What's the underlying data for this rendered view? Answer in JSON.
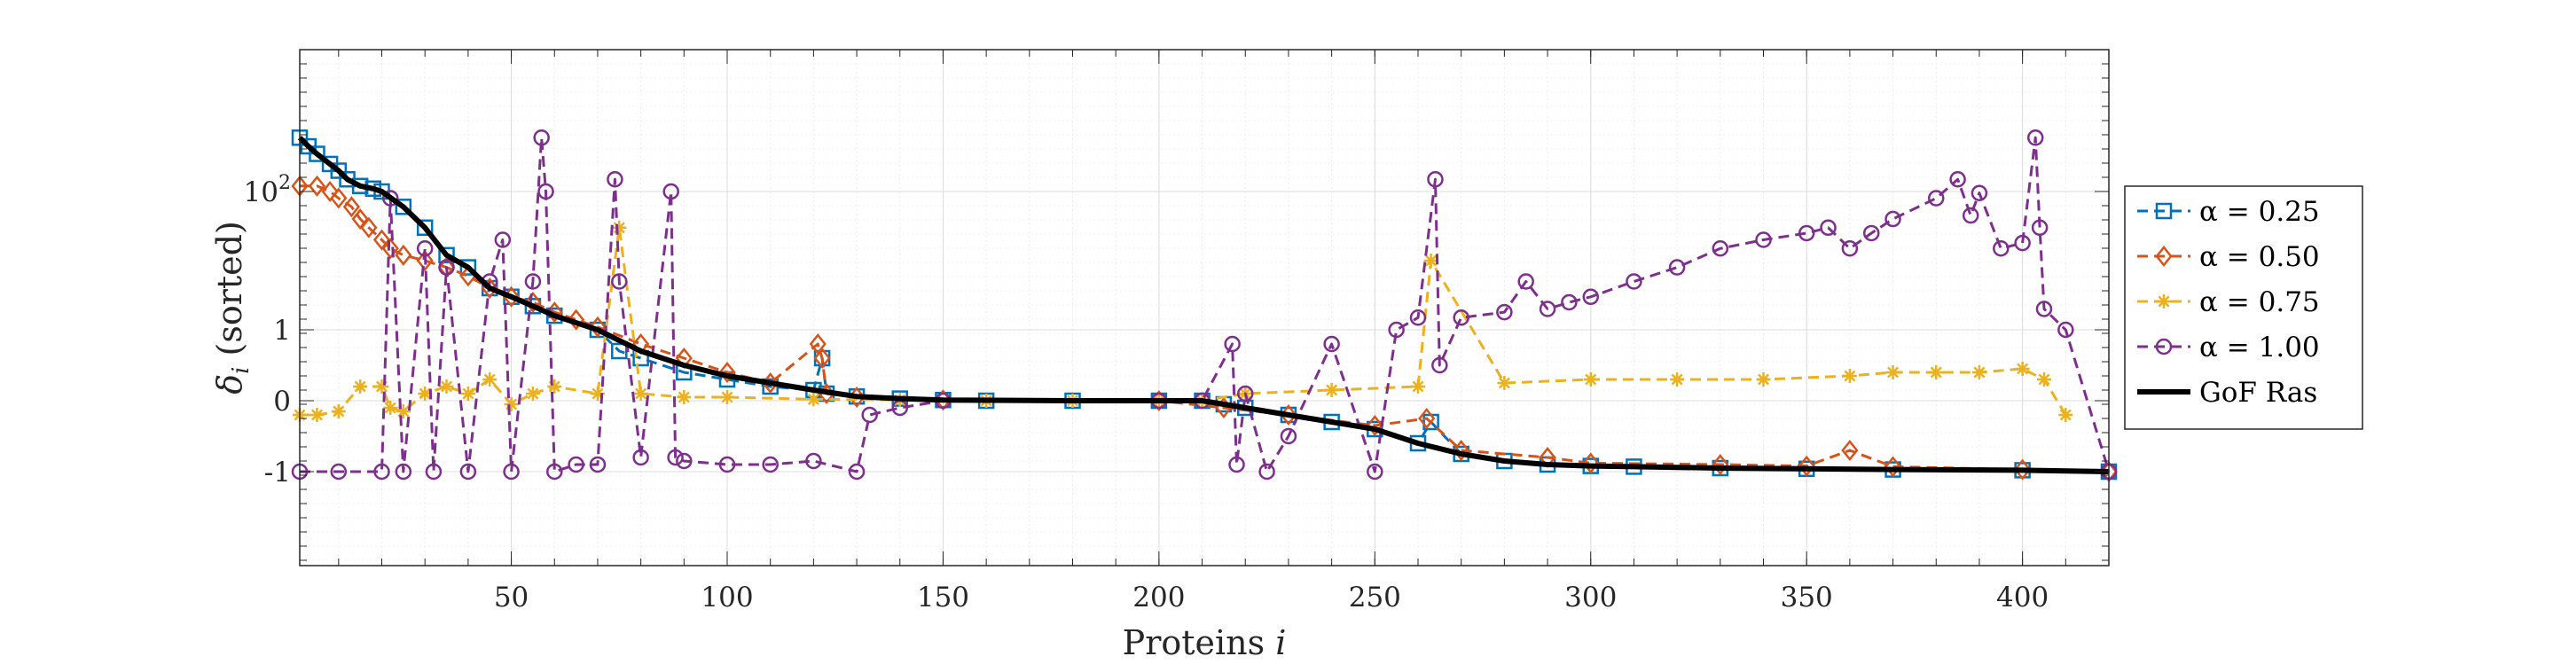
{
  "chart_data": {
    "type": "line",
    "xlabel": "Proteins i",
    "ylabel": "δ_i (sorted)",
    "xlim": [
      1,
      420
    ],
    "y_scale": "symlog",
    "grid": true,
    "legend_position": "right-outside",
    "x_ticks": [
      50,
      100,
      150,
      200,
      250,
      300,
      350,
      400
    ],
    "x_tick_labels": [
      "50",
      "100",
      "150",
      "200",
      "250",
      "300",
      "350",
      "400"
    ],
    "y_ticks": [
      -1,
      0,
      1,
      100
    ],
    "y_tick_labels": [
      "-1",
      "0",
      "1",
      "10²"
    ],
    "series": [
      {
        "name": "α = 0.25",
        "color": "#0072BD",
        "marker": "square",
        "linestyle": "dashed",
        "x": [
          1,
          3,
          5,
          8,
          10,
          12,
          15,
          18,
          20,
          25,
          30,
          35,
          40,
          45,
          50,
          55,
          60,
          70,
          75,
          80,
          90,
          100,
          110,
          120,
          122,
          123,
          130,
          140,
          150,
          160,
          180,
          200,
          210,
          215,
          220,
          230,
          240,
          250,
          260,
          263,
          270,
          280,
          290,
          300,
          310,
          330,
          350,
          370,
          400,
          420
        ],
        "values": [
          600,
          450,
          350,
          250,
          200,
          150,
          120,
          110,
          100,
          60,
          30,
          12,
          8,
          4,
          3,
          2.2,
          1.6,
          1.0,
          0.7,
          0.6,
          0.4,
          0.3,
          0.2,
          0.15,
          0.6,
          0.1,
          0.06,
          0.03,
          0.01,
          0,
          0,
          0,
          0,
          -0.05,
          -0.1,
          -0.2,
          -0.3,
          -0.4,
          -0.6,
          -0.3,
          -0.75,
          -0.85,
          -0.9,
          -0.92,
          -0.93,
          -0.95,
          -0.96,
          -0.97,
          -0.98,
          -1.0
        ]
      },
      {
        "name": "α = 0.50",
        "color": "#D95319",
        "marker": "diamond",
        "linestyle": "dashed",
        "x": [
          1,
          5,
          8,
          10,
          13,
          15,
          17,
          20,
          22,
          25,
          30,
          35,
          40,
          45,
          50,
          55,
          60,
          65,
          70,
          80,
          90,
          100,
          110,
          121,
          122,
          123,
          130,
          150,
          200,
          215,
          230,
          250,
          262,
          270,
          290,
          300,
          330,
          350,
          360,
          370,
          400,
          420
        ],
        "values": [
          120,
          120,
          100,
          80,
          60,
          40,
          30,
          20,
          15,
          12,
          10,
          8,
          6,
          4,
          3,
          2.5,
          1.8,
          1.4,
          1.1,
          0.8,
          0.6,
          0.4,
          0.25,
          0.8,
          0.6,
          0.1,
          0.05,
          0.01,
          0,
          -0.1,
          -0.2,
          -0.35,
          -0.25,
          -0.7,
          -0.8,
          -0.88,
          -0.9,
          -0.92,
          -0.7,
          -0.93,
          -0.97,
          -1.0
        ]
      },
      {
        "name": "α = 0.75",
        "color": "#EDB120",
        "marker": "asterisk",
        "linestyle": "dashed",
        "x": [
          1,
          5,
          10,
          15,
          20,
          22,
          25,
          30,
          35,
          40,
          45,
          50,
          55,
          60,
          70,
          75,
          80,
          90,
          100,
          120,
          140,
          160,
          180,
          200,
          210,
          220,
          240,
          260,
          263,
          280,
          300,
          320,
          340,
          360,
          370,
          380,
          390,
          400,
          405,
          410
        ],
        "values": [
          -0.2,
          -0.2,
          -0.15,
          0.2,
          0.2,
          -0.1,
          -0.15,
          0.1,
          0.2,
          0.1,
          0.3,
          -0.05,
          0.1,
          0.2,
          0.1,
          30,
          0.1,
          0.05,
          0.05,
          0.02,
          0.01,
          0,
          0,
          0,
          0,
          0.1,
          0.15,
          0.2,
          10,
          0.25,
          0.3,
          0.3,
          0.3,
          0.35,
          0.4,
          0.4,
          0.4,
          0.45,
          0.3,
          -0.2
        ]
      },
      {
        "name": "α = 1.00",
        "color": "#7E2F8E",
        "marker": "circle",
        "linestyle": "dashed",
        "x": [
          1,
          10,
          20,
          22,
          25,
          30,
          32,
          35,
          40,
          45,
          48,
          50,
          55,
          57,
          58,
          60,
          65,
          70,
          74,
          75,
          80,
          87,
          88,
          90,
          100,
          110,
          120,
          130,
          133,
          140,
          150,
          200,
          210,
          217,
          218,
          220,
          225,
          230,
          240,
          250,
          255,
          260,
          264,
          265,
          270,
          280,
          285,
          290,
          295,
          300,
          310,
          320,
          330,
          340,
          350,
          355,
          360,
          365,
          370,
          380,
          385,
          388,
          390,
          395,
          400,
          403,
          404,
          405,
          410,
          420
        ],
        "values": [
          -1,
          -1,
          -1,
          80,
          -1,
          15,
          -1,
          8,
          -1,
          5,
          20,
          -1,
          5,
          600,
          100,
          -1,
          -0.9,
          -0.9,
          150,
          5,
          -0.8,
          100,
          -0.8,
          -0.85,
          -0.9,
          -0.9,
          -0.85,
          -1,
          -0.2,
          -0.1,
          0,
          0,
          0,
          0.8,
          -0.9,
          0.1,
          -1,
          -0.5,
          0.8,
          -1,
          1.0,
          1.5,
          150,
          0.5,
          1.5,
          1.8,
          5,
          2.0,
          2.5,
          3.0,
          5,
          8,
          15,
          20,
          25,
          30,
          15,
          25,
          40,
          80,
          150,
          45,
          95,
          15,
          18,
          600,
          30,
          2.0,
          1.0,
          -1
        ]
      },
      {
        "name": "GoF Ras",
        "color": "#000000",
        "marker": "none",
        "linestyle": "solid",
        "x": [
          1,
          3,
          5,
          8,
          10,
          12,
          15,
          18,
          20,
          25,
          30,
          35,
          40,
          45,
          50,
          55,
          60,
          70,
          80,
          90,
          100,
          110,
          120,
          130,
          140,
          150,
          180,
          200,
          210,
          215,
          220,
          230,
          240,
          250,
          260,
          270,
          280,
          290,
          300,
          310,
          330,
          350,
          370,
          400,
          420
        ],
        "values": [
          600,
          450,
          350,
          250,
          200,
          150,
          120,
          110,
          100,
          60,
          30,
          12,
          8,
          4,
          3,
          2.2,
          1.6,
          1.0,
          0.7,
          0.5,
          0.35,
          0.25,
          0.15,
          0.06,
          0.03,
          0.01,
          0,
          0,
          0,
          -0.05,
          -0.1,
          -0.2,
          -0.3,
          -0.4,
          -0.6,
          -0.75,
          -0.85,
          -0.9,
          -0.92,
          -0.93,
          -0.95,
          -0.96,
          -0.97,
          -0.98,
          -1.0
        ]
      }
    ]
  }
}
